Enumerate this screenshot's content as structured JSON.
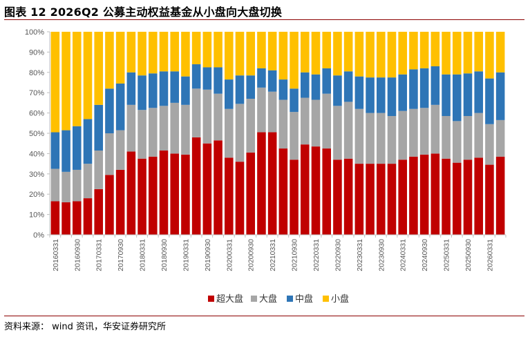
{
  "figure": {
    "title": "图表 12 2026Q2 公募主动权益基金从小盘向大盘切换",
    "source": "资料来源： wind 资讯，华安证券研究所"
  },
  "chart_data": {
    "type": "bar",
    "stacked": true,
    "percent": true,
    "ylim": [
      0,
      100
    ],
    "yticks": [
      "0%",
      "10%",
      "20%",
      "30%",
      "40%",
      "50%",
      "60%",
      "70%",
      "80%",
      "90%",
      "100%"
    ],
    "grid": false,
    "legend_position": "bottom",
    "x": [
      "20160331",
      "20160630",
      "20160930",
      "20161231",
      "20170331",
      "20170630",
      "20170930",
      "20171231",
      "20180331",
      "20180630",
      "20180930",
      "20181231",
      "20190331",
      "20190630",
      "20190930",
      "20191231",
      "20200331",
      "20200630",
      "20200930",
      "20201231",
      "20210331",
      "20210630",
      "20210930",
      "20211231",
      "20220331",
      "20220630",
      "20220930",
      "20221231",
      "20230331",
      "20230630",
      "20230930",
      "20231231",
      "20240331",
      "20240630",
      "20240930",
      "20241231",
      "20250331",
      "20250630",
      "20250930",
      "20251231",
      "20260331",
      "20260630"
    ],
    "x_labeled": [
      "20160331",
      "20160930",
      "20170331",
      "20170930",
      "20180331",
      "20180930",
      "20190331",
      "20190930",
      "20200331",
      "20200930",
      "20210331",
      "20210930",
      "20220331",
      "20220930",
      "20230331",
      "20230930",
      "20240331",
      "20240930",
      "20250331",
      "20250930",
      "20260331"
    ],
    "series": [
      {
        "name": "超大盘",
        "color": "#c00000",
        "values": [
          16.5,
          16,
          16.5,
          18,
          22.5,
          29.5,
          32,
          41,
          37.5,
          38.5,
          41.5,
          40,
          39.5,
          48,
          45,
          46.5,
          38,
          36,
          40.5,
          50.5,
          50.5,
          42.5,
          37,
          44.5,
          43.5,
          42.5,
          37,
          37.5,
          35,
          35,
          35,
          35,
          37,
          38.5,
          39.5,
          40,
          37.5,
          35.5,
          37,
          38,
          34.5,
          38.5
        ]
      },
      {
        "name": "大盘",
        "color": "#a6a6a6",
        "values": [
          16,
          15,
          15.5,
          17,
          19,
          20.5,
          19.5,
          23,
          24,
          24,
          22,
          25,
          24.5,
          24,
          26.5,
          23,
          24,
          28.5,
          26.5,
          22,
          20,
          24,
          23.5,
          23,
          23,
          27,
          26.5,
          28,
          27,
          25,
          25,
          23.5,
          24,
          23.5,
          23,
          24,
          21,
          20.5,
          21.5,
          22,
          20,
          18
        ]
      },
      {
        "name": "中盘",
        "color": "#2e75b6",
        "values": [
          18,
          20.5,
          21.5,
          22,
          22.5,
          22,
          23,
          16,
          17,
          17,
          17,
          15.5,
          14,
          12,
          11,
          13,
          14.5,
          14,
          11.5,
          9.5,
          10.5,
          10,
          11.5,
          12.5,
          12.5,
          12.5,
          15,
          15,
          16,
          17.5,
          17.5,
          19,
          18,
          19.5,
          19.5,
          19,
          20.5,
          23,
          21,
          20.5,
          22.5,
          23.5
        ]
      },
      {
        "name": "小盘",
        "color": "#ffc000",
        "values": [
          49.5,
          48.5,
          46.5,
          43,
          36,
          28,
          25.5,
          20,
          21.5,
          20.5,
          19.5,
          19.5,
          22,
          16,
          17.5,
          17.5,
          23.5,
          21.5,
          21.5,
          18,
          19,
          23.5,
          28,
          20,
          21,
          18,
          21.5,
          19.5,
          22,
          22.5,
          22.5,
          22.5,
          21,
          18.5,
          18,
          17,
          21,
          21,
          20.5,
          19.5,
          23,
          20
        ]
      }
    ]
  }
}
